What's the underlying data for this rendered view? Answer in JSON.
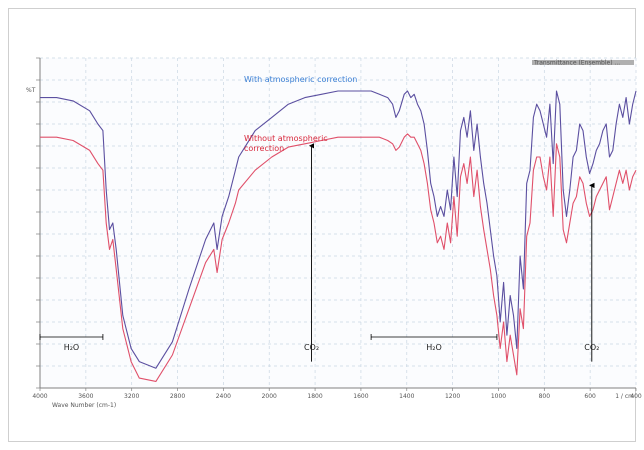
{
  "chart_data": {
    "type": "line",
    "y_axis_symbol": "%T",
    "x_unit_label": "1 / cm",
    "x_axis_note": "Wave Number (cm-1)",
    "xlim": [
      4000,
      400
    ],
    "ylim": [
      0,
      100
    ],
    "x_ticks": [
      "4000",
      "3600",
      "3200",
      "2800",
      "2400",
      "2000",
      "1800",
      "1600",
      "1400",
      "1200",
      "1000",
      "800",
      "600",
      "400"
    ],
    "legend_box_text": "Transmittance (Ensemble) ...",
    "grid": true,
    "series": [
      {
        "name": "With atmospheric correction",
        "color": "#5b4fa0",
        "x": [
          4000,
          3900,
          3800,
          3700,
          3650,
          3620,
          3600,
          3580,
          3560,
          3540,
          3500,
          3450,
          3400,
          3300,
          3200,
          3100,
          3000,
          2950,
          2930,
          2900,
          2860,
          2820,
          2800,
          2700,
          2600,
          2500,
          2400,
          2300,
          2200,
          2100,
          2000,
          1950,
          1900,
          1870,
          1850,
          1830,
          1800,
          1780,
          1760,
          1740,
          1720,
          1700,
          1680,
          1660,
          1640,
          1620,
          1600,
          1580,
          1560,
          1540,
          1520,
          1500,
          1480,
          1460,
          1440,
          1420,
          1400,
          1380,
          1360,
          1340,
          1320,
          1300,
          1280,
          1260,
          1240,
          1220,
          1200,
          1180,
          1160,
          1140,
          1120,
          1100,
          1080,
          1060,
          1040,
          1020,
          1000,
          980,
          960,
          940,
          920,
          900,
          880,
          860,
          840,
          820,
          800,
          780,
          760,
          740,
          720,
          700,
          680,
          660,
          640,
          620,
          600,
          580,
          560,
          540,
          520,
          500,
          480,
          460,
          440,
          420,
          400
        ],
        "y": [
          88,
          88,
          87,
          84,
          80,
          78,
          60,
          48,
          50,
          42,
          22,
          12,
          8,
          6,
          14,
          30,
          45,
          50,
          42,
          52,
          58,
          66,
          70,
          78,
          82,
          86,
          88,
          89,
          90,
          90,
          90,
          89,
          88,
          86,
          82,
          84,
          89,
          90,
          88,
          89,
          86,
          84,
          80,
          72,
          62,
          58,
          52,
          55,
          52,
          60,
          54,
          70,
          58,
          78,
          82,
          76,
          84,
          72,
          80,
          70,
          62,
          56,
          48,
          40,
          34,
          20,
          32,
          16,
          28,
          22,
          12,
          40,
          30,
          62,
          66,
          82,
          86,
          84,
          80,
          76,
          86,
          68,
          90,
          86,
          60,
          52,
          60,
          70,
          72,
          80,
          78,
          70,
          65,
          68,
          72,
          74,
          78,
          80,
          70,
          72,
          80,
          86,
          82,
          88,
          80,
          86,
          90
        ]
      },
      {
        "name": "Without atmospheric correction",
        "color": "#e0506a",
        "x": [
          4000,
          3900,
          3800,
          3700,
          3650,
          3620,
          3600,
          3580,
          3560,
          3540,
          3500,
          3450,
          3400,
          3300,
          3200,
          3100,
          3000,
          2950,
          2930,
          2900,
          2860,
          2820,
          2800,
          2700,
          2600,
          2500,
          2400,
          2300,
          2200,
          2100,
          2000,
          1950,
          1900,
          1870,
          1850,
          1830,
          1800,
          1780,
          1760,
          1740,
          1720,
          1700,
          1680,
          1660,
          1640,
          1620,
          1600,
          1580,
          1560,
          1540,
          1520,
          1500,
          1480,
          1460,
          1440,
          1420,
          1400,
          1380,
          1360,
          1340,
          1320,
          1300,
          1280,
          1260,
          1240,
          1220,
          1200,
          1180,
          1160,
          1140,
          1120,
          1100,
          1080,
          1060,
          1040,
          1020,
          1000,
          980,
          960,
          940,
          920,
          900,
          880,
          860,
          840,
          820,
          800,
          780,
          760,
          740,
          720,
          700,
          680,
          660,
          640,
          620,
          600,
          580,
          560,
          540,
          520,
          500,
          480,
          460,
          440,
          420,
          400
        ],
        "y": [
          76,
          76,
          75,
          72,
          68,
          66,
          50,
          42,
          45,
          36,
          18,
          8,
          3,
          2,
          10,
          24,
          38,
          42,
          35,
          45,
          50,
          56,
          60,
          66,
          70,
          73,
          74,
          75,
          76,
          76,
          76,
          76,
          75,
          74,
          72,
          73,
          76,
          77,
          76,
          76,
          74,
          72,
          68,
          62,
          54,
          50,
          44,
          46,
          42,
          50,
          44,
          58,
          46,
          64,
          68,
          62,
          70,
          58,
          66,
          55,
          48,
          42,
          36,
          28,
          22,
          12,
          20,
          8,
          16,
          10,
          4,
          24,
          18,
          46,
          50,
          66,
          70,
          70,
          64,
          60,
          70,
          52,
          74,
          70,
          48,
          44,
          50,
          56,
          58,
          64,
          62,
          56,
          52,
          54,
          58,
          60,
          62,
          64,
          54,
          58,
          62,
          66,
          62,
          66,
          60,
          64,
          66
        ]
      }
    ],
    "curve_labels": {
      "upper": "With atmospheric correction",
      "lower_line1": "Without atmospheric",
      "lower_line2": "correction"
    },
    "annotations": [
      {
        "label": "H₂O",
        "kind": "range",
        "x_from": 4000,
        "x_to": 3620
      },
      {
        "label": "CO₂",
        "kind": "arrow",
        "x": 2360,
        "y_from": 8,
        "y_to": 74
      },
      {
        "label": "H₂O",
        "kind": "range",
        "x_from": 2000,
        "x_to": 1240
      },
      {
        "label": "CO₂",
        "kind": "arrow",
        "x": 667,
        "y_from": 8,
        "y_to": 62
      }
    ],
    "colors": {
      "grid": "#c9d6e3",
      "axis": "#808080",
      "upper_label": "#3b7fd4",
      "lower_label": "#d8283c",
      "legend_box": "#b0b0b0"
    }
  }
}
